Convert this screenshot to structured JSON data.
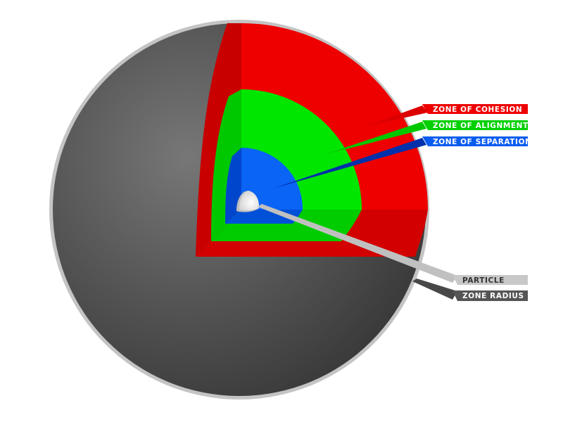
{
  "labels": {
    "cohesion": "ZONE OF COHESION",
    "alignment": "ZONE OF ALIGNMENT",
    "separation": "ZONE OF SEPARATION",
    "particle": "PARTICLE",
    "zone_radius": "ZONE RADIUS"
  },
  "colors": {
    "sphere_dark": "#3c3c3c",
    "sphere_light": "#7a7a7a",
    "sphere_rim": "#bdbdbd",
    "cohesion": "#ee0000",
    "cohesion_shade": "#c00000",
    "alignment": "#00e000",
    "alignment_shade": "#00b800",
    "separation": "#0a5cf0",
    "separation_shade": "#0040c0",
    "particle": "#f4f4f4",
    "particle_label_bg": "#c8c8c8",
    "zone_radius_label_bg": "#555555"
  }
}
